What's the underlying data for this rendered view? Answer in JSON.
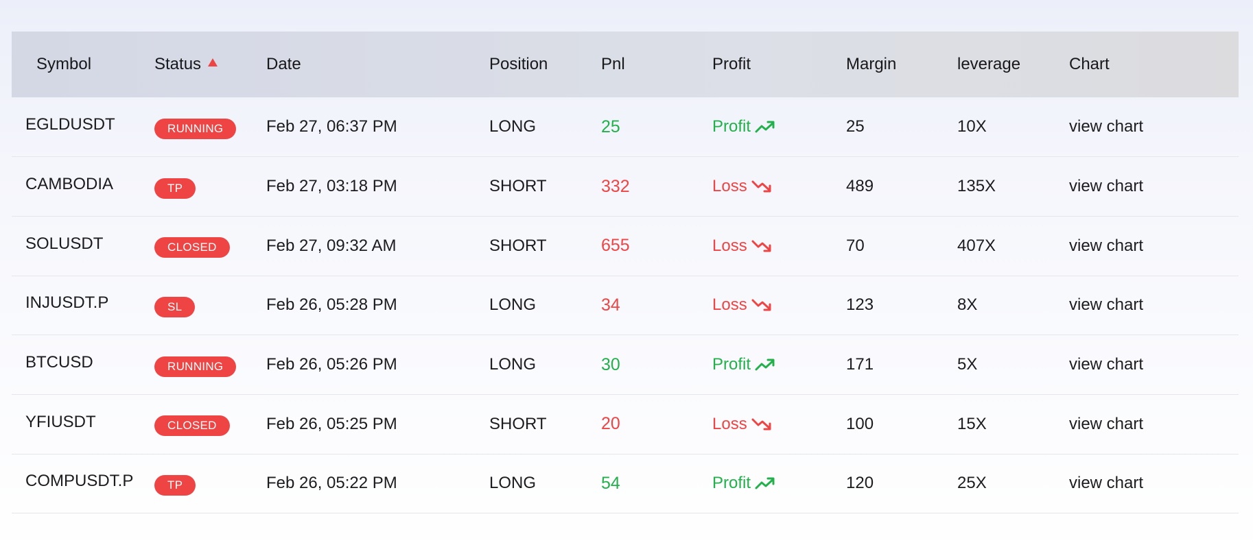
{
  "table": {
    "headers": {
      "symbol": "Symbol",
      "status": "Status",
      "date": "Date",
      "position": "Position",
      "pnl": "Pnl",
      "profit": "Profit",
      "margin": "Margin",
      "leverage": "leverage",
      "chart": "Chart"
    },
    "sort": {
      "column": "status",
      "direction": "ascending",
      "icon": "sort-up-icon"
    },
    "rows": [
      {
        "symbol": "EGLDUSDT",
        "status": "RUNNING",
        "date": "Feb 27, 06:37 PM",
        "position": "LONG",
        "pnl": "25",
        "profit": "Profit",
        "trend": "up",
        "margin": "25",
        "leverage": "10X",
        "chart": "view chart"
      },
      {
        "symbol": "CAMBODIA",
        "status": "TP",
        "date": "Feb 27, 03:18 PM",
        "position": "SHORT",
        "pnl": "332",
        "profit": "Loss",
        "trend": "down",
        "margin": "489",
        "leverage": "135X",
        "chart": "view chart"
      },
      {
        "symbol": "SOLUSDT",
        "status": "CLOSED",
        "date": "Feb 27, 09:32 AM",
        "position": "SHORT",
        "pnl": "655",
        "profit": "Loss",
        "trend": "down",
        "margin": "70",
        "leverage": "407X",
        "chart": "view chart"
      },
      {
        "symbol": "INJUSDT.P",
        "status": "SL",
        "date": "Feb 26, 05:28 PM",
        "position": "LONG",
        "pnl": "34",
        "profit": "Loss",
        "trend": "down",
        "margin": "123",
        "leverage": "8X",
        "chart": "view chart"
      },
      {
        "symbol": "BTCUSD",
        "status": "RUNNING",
        "date": "Feb 26, 05:26 PM",
        "position": "LONG",
        "pnl": "30",
        "profit": "Profit",
        "trend": "up",
        "margin": "171",
        "leverage": "5X",
        "chart": "view chart"
      },
      {
        "symbol": "YFIUSDT",
        "status": "CLOSED",
        "date": "Feb 26, 05:25 PM",
        "position": "SHORT",
        "pnl": "20",
        "profit": "Loss",
        "trend": "down",
        "margin": "100",
        "leverage": "15X",
        "chart": "view chart"
      },
      {
        "symbol": "COMPUSDT.P",
        "status": "TP",
        "date": "Feb 26, 05:22 PM",
        "position": "LONG",
        "pnl": "54",
        "profit": "Profit",
        "trend": "up",
        "margin": "120",
        "leverage": "25X",
        "chart": "view chart"
      }
    ]
  },
  "colors": {
    "profit": "#22b04b",
    "loss": "#ef4444",
    "badge": "#ef4444",
    "header_bg": "#d8dbe6"
  }
}
